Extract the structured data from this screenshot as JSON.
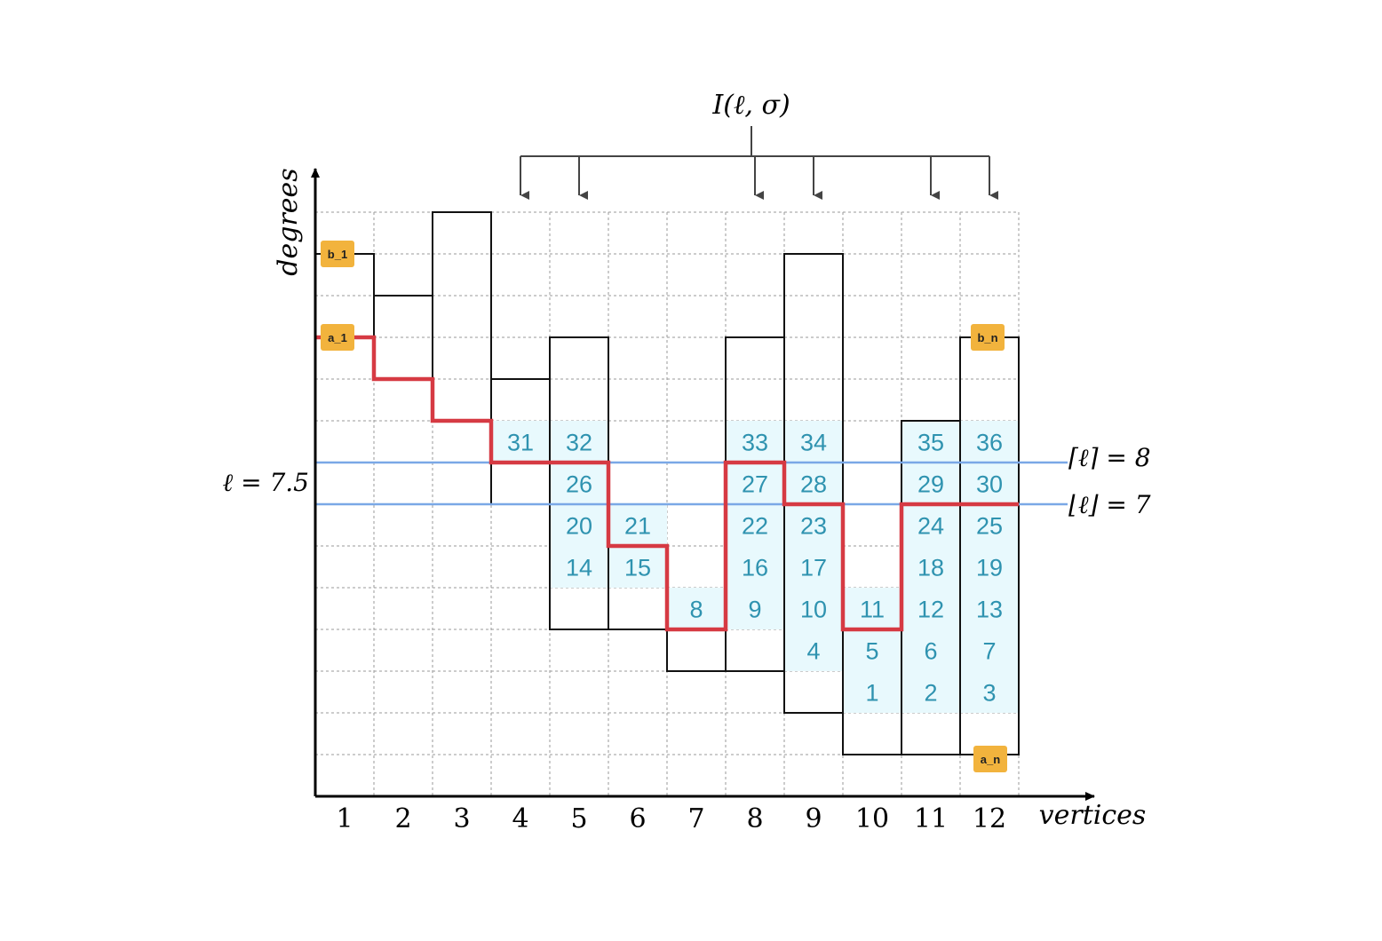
{
  "title": "I(ℓ, σ)",
  "axes": {
    "y_label": "degrees",
    "x_label": "vertices",
    "x_ticks": [
      "1",
      "2",
      "3",
      "4",
      "5",
      "6",
      "7",
      "8",
      "9",
      "10",
      "11",
      "12"
    ]
  },
  "levels": {
    "ell_label": "ℓ = 7.5",
    "ell_value": 7.5,
    "ceil_label": "⌈ℓ⌉ = 8",
    "ceil_value": 8,
    "floor_label": "⌊ℓ⌋ = 7",
    "floor_value": 7
  },
  "markers": {
    "b1": "b_1",
    "a1": "a_1",
    "bn": "b_n",
    "an": "a_n"
  },
  "interval": {
    "vertices": [
      4,
      5,
      8,
      9,
      11,
      12
    ]
  },
  "vertices": [
    {
      "index": 1,
      "a": 11,
      "b": 13
    },
    {
      "index": 2,
      "a": 10,
      "b": 12
    },
    {
      "index": 3,
      "a": 9,
      "b": 14
    },
    {
      "index": 4,
      "a": 7,
      "b": 10
    },
    {
      "index": 5,
      "a": 4,
      "b": 11
    },
    {
      "index": 6,
      "a": 4,
      "b": 6
    },
    {
      "index": 7,
      "a": 3,
      "b": 4
    },
    {
      "index": 8,
      "a": 3,
      "b": 11
    },
    {
      "index": 9,
      "a": 2,
      "b": 13
    },
    {
      "index": 10,
      "a": 1,
      "b": 4
    },
    {
      "index": 11,
      "a": 1,
      "b": 9
    },
    {
      "index": 12,
      "a": 1,
      "b": 11
    }
  ],
  "red_path": [
    11,
    10,
    9,
    8,
    8,
    6,
    4,
    8,
    7,
    4,
    7,
    7
  ],
  "cells": [
    {
      "v": 4,
      "row": 8,
      "label": "31"
    },
    {
      "v": 5,
      "row": 8,
      "label": "32"
    },
    {
      "v": 8,
      "row": 8,
      "label": "33"
    },
    {
      "v": 9,
      "row": 8,
      "label": "34"
    },
    {
      "v": 11,
      "row": 8,
      "label": "35"
    },
    {
      "v": 12,
      "row": 8,
      "label": "36"
    },
    {
      "v": 5,
      "row": 7,
      "label": "26"
    },
    {
      "v": 8,
      "row": 7,
      "label": "27"
    },
    {
      "v": 9,
      "row": 7,
      "label": "28"
    },
    {
      "v": 11,
      "row": 7,
      "label": "29"
    },
    {
      "v": 12,
      "row": 7,
      "label": "30"
    },
    {
      "v": 5,
      "row": 6,
      "label": "20"
    },
    {
      "v": 6,
      "row": 6,
      "label": "21"
    },
    {
      "v": 8,
      "row": 6,
      "label": "22"
    },
    {
      "v": 9,
      "row": 6,
      "label": "23"
    },
    {
      "v": 11,
      "row": 6,
      "label": "24"
    },
    {
      "v": 12,
      "row": 6,
      "label": "25"
    },
    {
      "v": 5,
      "row": 5,
      "label": "14"
    },
    {
      "v": 6,
      "row": 5,
      "label": "15"
    },
    {
      "v": 8,
      "row": 5,
      "label": "16"
    },
    {
      "v": 9,
      "row": 5,
      "label": "17"
    },
    {
      "v": 11,
      "row": 5,
      "label": "18"
    },
    {
      "v": 12,
      "row": 5,
      "label": "19"
    },
    {
      "v": 7,
      "row": 4,
      "label": "8"
    },
    {
      "v": 8,
      "row": 4,
      "label": "9"
    },
    {
      "v": 9,
      "row": 4,
      "label": "10"
    },
    {
      "v": 10,
      "row": 4,
      "label": "11"
    },
    {
      "v": 11,
      "row": 4,
      "label": "12"
    },
    {
      "v": 12,
      "row": 4,
      "label": "13"
    },
    {
      "v": 9,
      "row": 3,
      "label": "4"
    },
    {
      "v": 10,
      "row": 3,
      "label": "5"
    },
    {
      "v": 11,
      "row": 3,
      "label": "6"
    },
    {
      "v": 12,
      "row": 3,
      "label": "7"
    },
    {
      "v": 10,
      "row": 2,
      "label": "1"
    },
    {
      "v": 11,
      "row": 2,
      "label": "2"
    },
    {
      "v": 12,
      "row": 2,
      "label": "3"
    }
  ],
  "colors": {
    "axis": "#000000",
    "grid": "#9a9a9a",
    "bar": "#111111",
    "cell_fill": "#e8f9fd",
    "cell_text": "#2f93b0",
    "red_path": "#d63a43",
    "level_line": "#7aa8e6",
    "marker_fill": "#f2b33d",
    "bracket": "#444444"
  }
}
